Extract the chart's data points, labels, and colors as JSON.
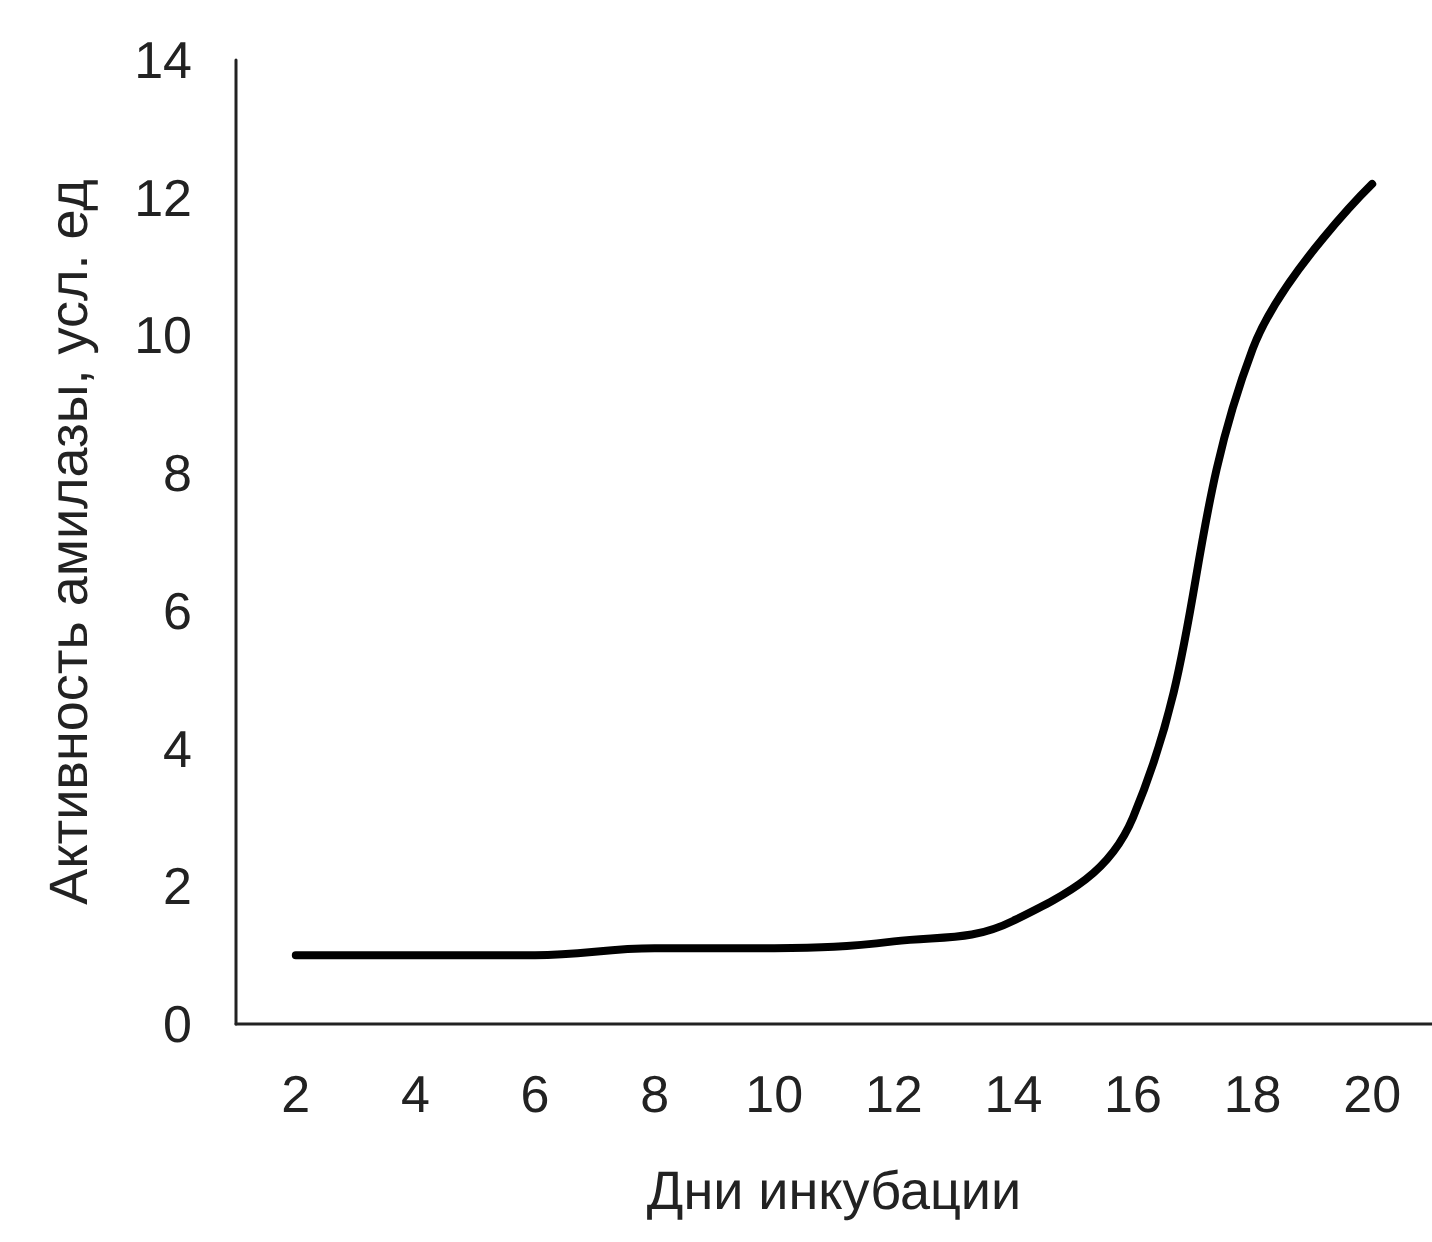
{
  "chart_data": {
    "type": "line",
    "xlabel": "Дни инкубации",
    "ylabel": "Активность амилазы, усл. ед",
    "categories": [
      "2",
      "4",
      "6",
      "8",
      "10",
      "12",
      "14",
      "16",
      "18",
      "20"
    ],
    "series": [
      {
        "color": "#000000",
        "values": [
          1.0,
          1.0,
          1.0,
          1.1,
          1.1,
          1.2,
          1.5,
          3.0,
          9.8,
          12.2
        ]
      }
    ],
    "ylim": [
      0,
      14
    ],
    "yticks": [
      0,
      2,
      4,
      6,
      8,
      10,
      12,
      14
    ],
    "marker": "none",
    "line_style": "solid"
  }
}
